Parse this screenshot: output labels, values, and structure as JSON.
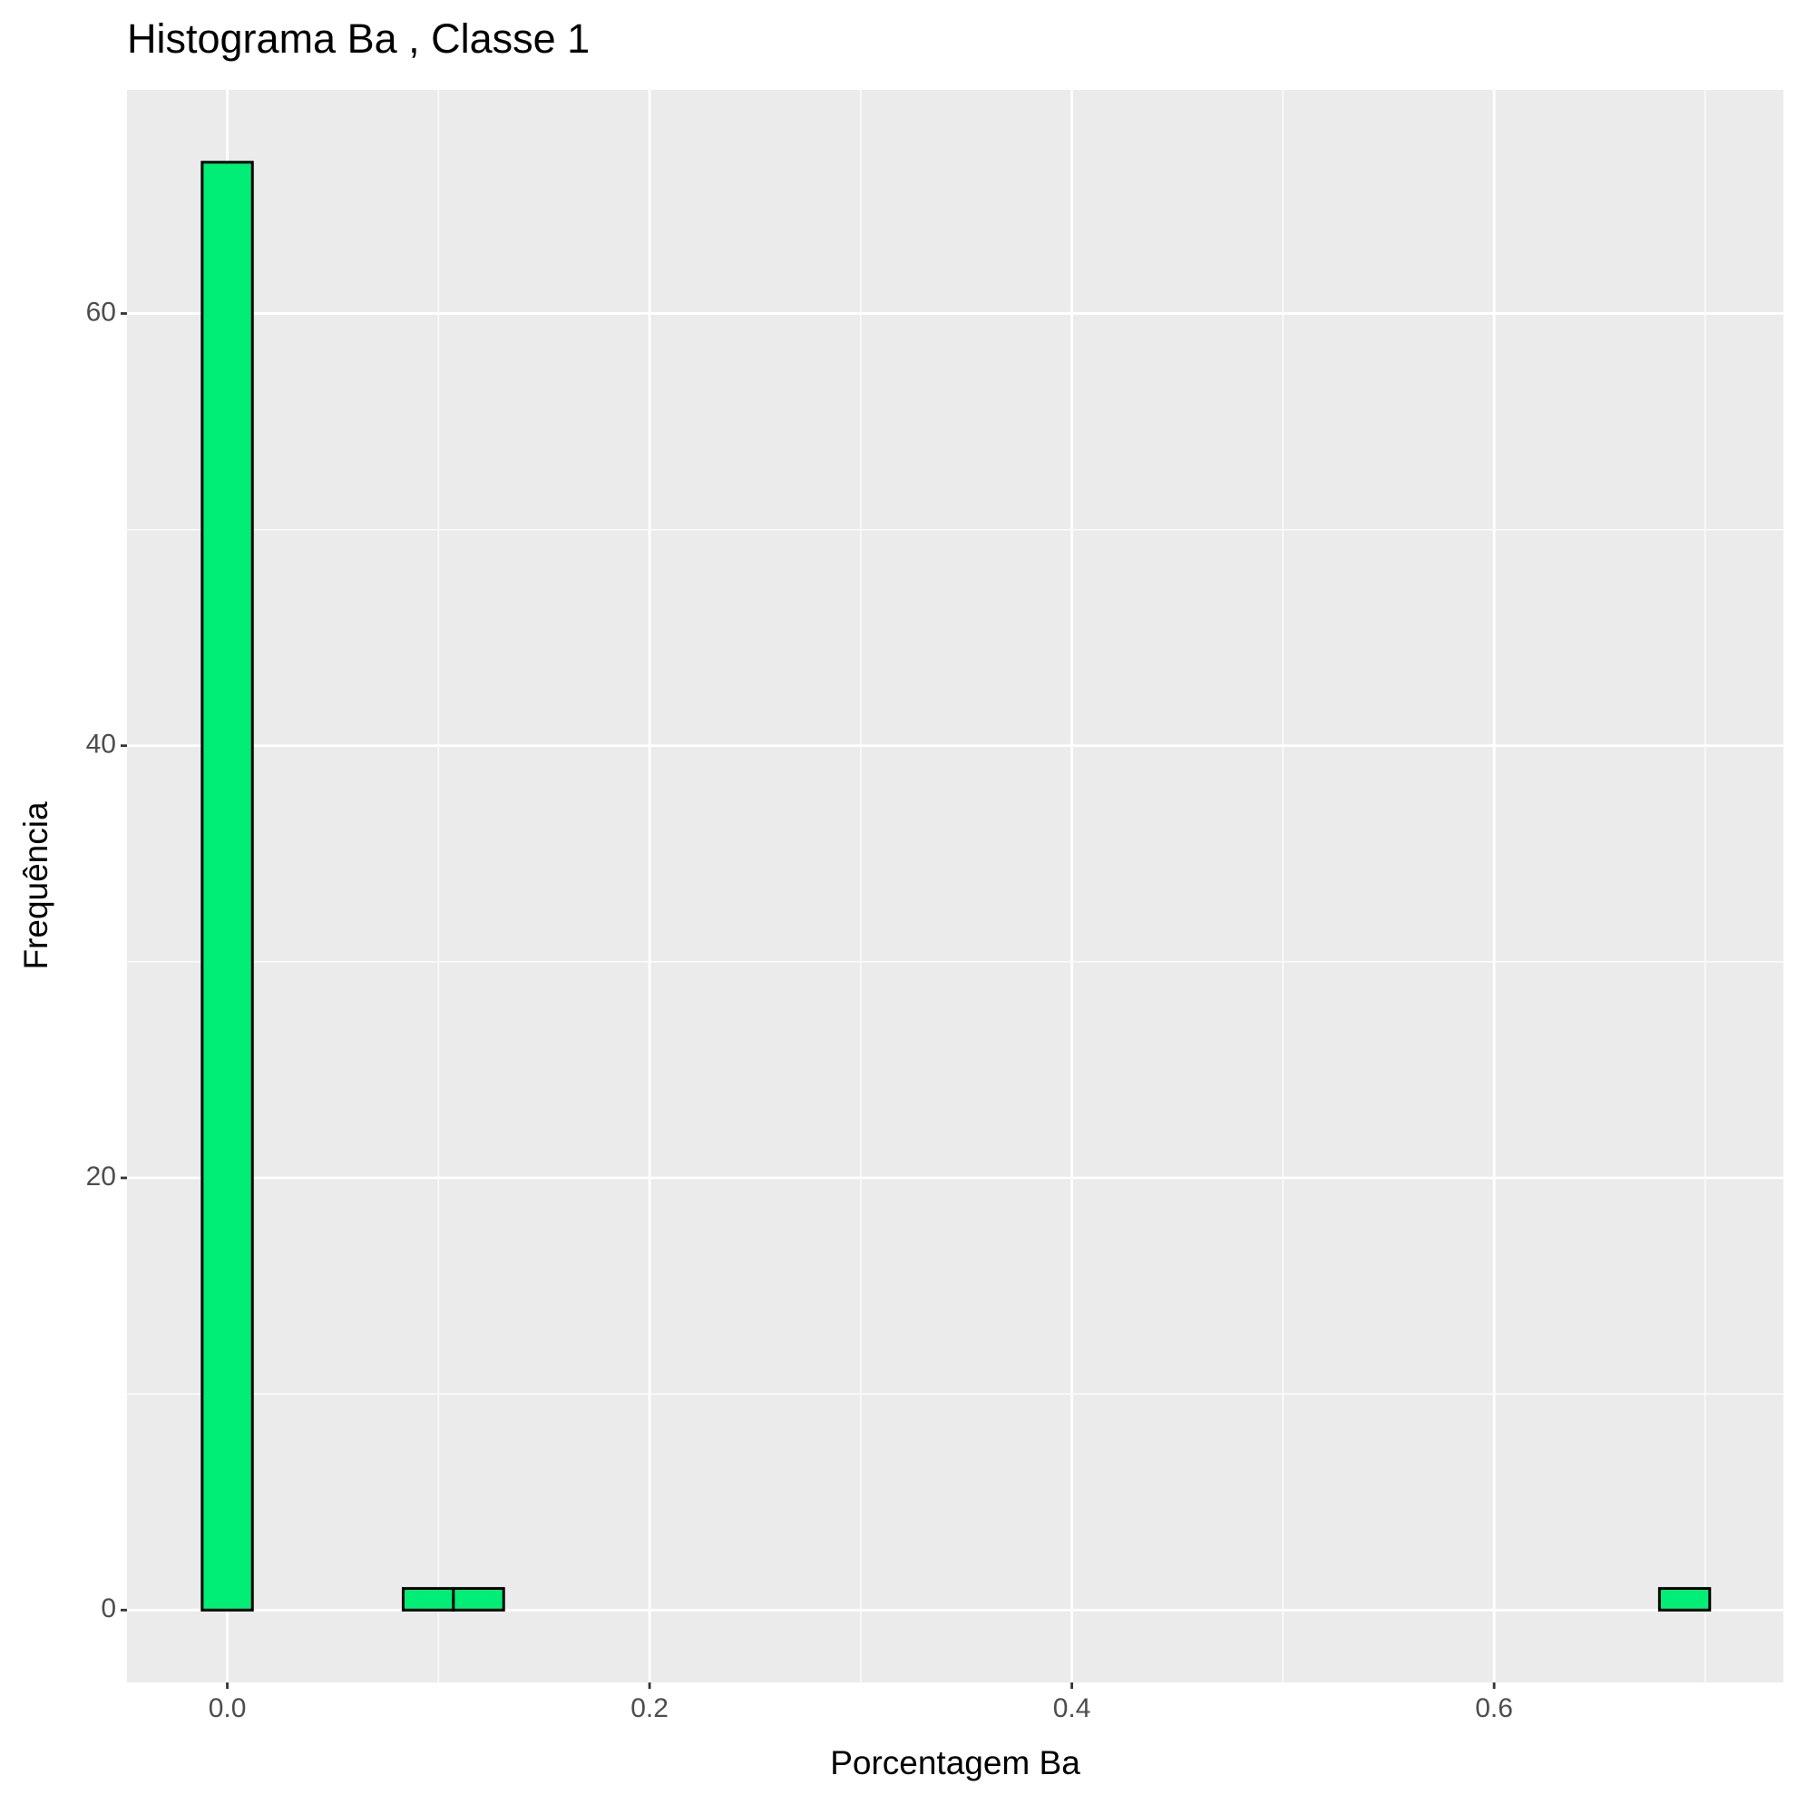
{
  "chart_data": {
    "type": "histogram",
    "title": "Histograma  Ba , Classe  1",
    "x_label": "Porcentagem Ba",
    "y_label": "Frequência",
    "bins": [
      -0.0119,
      0.0119,
      0.0357,
      0.0595,
      0.0833,
      0.1071,
      0.1309,
      0.1547,
      0.1785,
      0.2023,
      0.2261,
      0.2499,
      0.2737,
      0.2975,
      0.3213,
      0.3451,
      0.3689,
      0.3927,
      0.4165,
      0.4403,
      0.4641,
      0.4879,
      0.5117,
      0.5355,
      0.5593,
      0.5831,
      0.6069,
      0.6307,
      0.6545,
      0.6783,
      0.7021
    ],
    "values": [
      67,
      0,
      0,
      0,
      1,
      1,
      0,
      0,
      0,
      0,
      0,
      0,
      0,
      0,
      0,
      0,
      0,
      0,
      0,
      0,
      0,
      0,
      0,
      0,
      0,
      0,
      0,
      0,
      0,
      1
    ],
    "color": "#00ee76",
    "xlim": [
      -0.0475,
      0.737
    ],
    "ylim": [
      -3.35,
      70.35
    ],
    "xticks": [
      {
        "value": 0,
        "label": "0.0"
      },
      0.2,
      0.4,
      0.6
    ],
    "yticks": [
      0,
      20,
      40,
      60
    ],
    "x_minor_ticks": [
      0.1,
      0.3,
      0.5,
      0.7
    ],
    "y_minor_ticks": [
      10,
      30,
      50
    ],
    "grid": true
  }
}
